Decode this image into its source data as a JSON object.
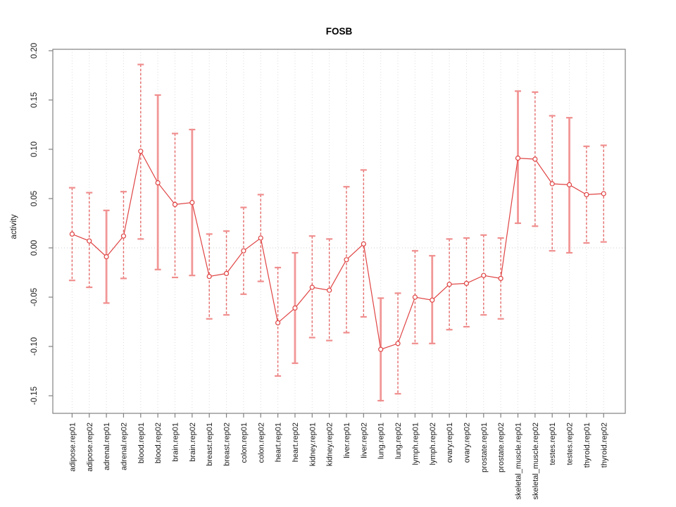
{
  "title": "FOSB",
  "ylabel": "activity",
  "colors": {
    "point": "#e04343",
    "errorbar_dashed": "#e25252",
    "errorbar_solid": "#f19191",
    "errorbar_cap": "#f08e8e",
    "axis": "#828282",
    "grid": "#dcdcdc",
    "zero_line": "#cccccc",
    "label": "#1a1a1a"
  },
  "chart_data": {
    "type": "scatter",
    "title": "FOSB",
    "xlabel": "",
    "ylabel": "activity",
    "ylim": [
      -0.168,
      0.201
    ],
    "ytick_labels": [
      "0.20",
      "0.15",
      "0.10",
      "0.05",
      "0.00",
      "-0.05",
      "-0.10",
      "-0.15"
    ],
    "grid": "vertical dotted gridlines at each category; dotted horizontal line at y=0",
    "legend": "none",
    "marker": "open-circle connected by line, with error bars",
    "categories": [
      "adipose.rep01",
      "adipose.rep02",
      "adrenal.rep01",
      "adrenal.rep02",
      "blood.rep01",
      "blood.rep02",
      "brain.rep01",
      "brain.rep02",
      "breast.rep01",
      "breast.rep02",
      "colon.rep01",
      "colon.rep02",
      "heart.rep01",
      "heart.rep02",
      "kidney.rep01",
      "kidney.rep02",
      "liver.rep01",
      "liver.rep02",
      "lung.rep01",
      "lung.rep02",
      "lymph.rep01",
      "lymph.rep02",
      "ovary.rep01",
      "ovary.rep02",
      "prostate.rep01",
      "prostate.rep02",
      "skeletal_muscle.rep01",
      "skeletal_muscle.rep02",
      "testes.rep01",
      "testes.rep02",
      "thyroid.rep01",
      "thyroid.rep02"
    ],
    "series": [
      {
        "name": "activity",
        "values": [
          0.014,
          0.007,
          -0.009,
          0.012,
          0.098,
          0.066,
          0.044,
          0.046,
          -0.029,
          -0.026,
          -0.003,
          0.01,
          -0.076,
          -0.061,
          -0.04,
          -0.043,
          -0.012,
          0.004,
          -0.103,
          -0.097,
          -0.05,
          -0.053,
          -0.037,
          -0.036,
          -0.028,
          -0.031,
          0.091,
          0.09,
          0.065,
          0.064,
          0.054,
          0.055
        ],
        "upper": [
          0.061,
          0.056,
          0.038,
          0.057,
          0.186,
          0.155,
          0.116,
          0.12,
          0.014,
          0.017,
          0.041,
          0.054,
          -0.02,
          -0.005,
          0.012,
          0.009,
          0.062,
          0.079,
          -0.051,
          -0.046,
          -0.003,
          -0.008,
          0.009,
          0.01,
          0.013,
          0.01,
          0.159,
          0.158,
          0.134,
          0.132,
          0.103,
          0.104
        ],
        "lower": [
          -0.033,
          -0.04,
          -0.056,
          -0.031,
          0.009,
          -0.022,
          -0.03,
          -0.028,
          -0.072,
          -0.068,
          -0.047,
          -0.034,
          -0.13,
          -0.117,
          -0.091,
          -0.094,
          -0.086,
          -0.07,
          -0.155,
          -0.148,
          -0.097,
          -0.097,
          -0.083,
          -0.08,
          -0.068,
          -0.072,
          0.025,
          0.022,
          -0.003,
          -0.005,
          0.005,
          0.006
        ],
        "bar_styles": [
          "dashed",
          "dashed",
          "solid",
          "dashed",
          "dashed",
          "solid",
          "dashed",
          "solid",
          "dashed",
          "dashed",
          "dashed",
          "dashed",
          "dashed",
          "solid",
          "dashed",
          "dashed",
          "dashed",
          "dashed",
          "solid",
          "dashed",
          "dashed",
          "solid",
          "dashed",
          "dashed",
          "dashed",
          "dashed",
          "solid",
          "dashed",
          "dashed",
          "solid",
          "dashed",
          "dashed"
        ]
      }
    ]
  }
}
